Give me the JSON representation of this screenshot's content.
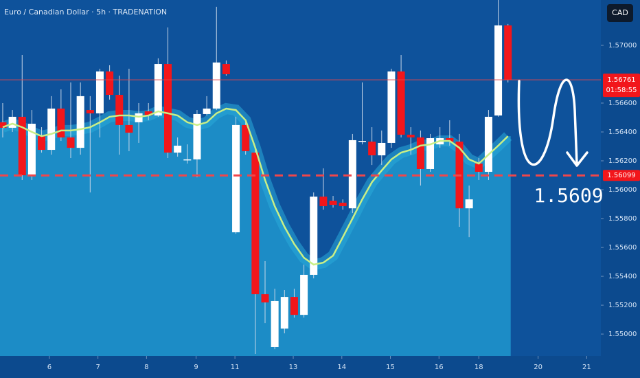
{
  "chart_data": {
    "type": "candlestick",
    "title": "Euro / Canadian Dollar · 5h · TRADENATION",
    "currency": "CAD",
    "open": [
      1.56467,
      1.56429,
      1.56505,
      1.561,
      1.56371,
      1.56276,
      1.56562,
      1.56362,
      1.5629,
      1.56552,
      1.56529,
      1.56819,
      1.56657,
      1.56448,
      1.56467,
      1.56543,
      1.56514,
      1.56871,
      1.56257,
      1.56205,
      1.5621,
      1.56524,
      1.56562,
      1.56871,
      1.55705,
      1.56448,
      1.56257,
      1.55276,
      1.5491,
      1.55038,
      1.55257,
      1.55133,
      1.5541,
      1.55952,
      1.55924,
      1.5591,
      1.55871,
      1.56333,
      1.56333,
      1.56238,
      1.56324,
      1.56819,
      1.56381,
      1.56362,
      1.56143,
      1.56314,
      1.56357,
      1.56333,
      1.55871,
      1.56181,
      1.56124,
      1.56514,
      1.57138
    ],
    "high": [
      1.566,
      1.56552,
      1.56933,
      1.56552,
      1.56433,
      1.56648,
      1.56695,
      1.56743,
      1.56743,
      1.56648,
      1.56838,
      1.56862,
      1.5679,
      1.56838,
      1.566,
      1.566,
      1.5691,
      1.57124,
      1.56362,
      1.56314,
      1.56552,
      1.56648,
      1.57267,
      1.56895,
      1.56505,
      1.56481,
      1.5629,
      1.55505,
      1.55314,
      1.55305,
      1.55314,
      1.55481,
      1.55981,
      1.56148,
      1.55957,
      1.55933,
      1.56386,
      1.56743,
      1.56433,
      1.5641,
      1.56838,
      1.56933,
      1.56433,
      1.5641,
      1.56386,
      1.56433,
      1.56481,
      1.56386,
      1.56029,
      1.56219,
      1.56552,
      1.57314,
      1.57148
    ],
    "low": [
      1.56362,
      1.564,
      1.56067,
      1.56067,
      1.56257,
      1.56243,
      1.56338,
      1.56219,
      1.56243,
      1.55981,
      1.56362,
      1.56624,
      1.56243,
      1.56267,
      1.56324,
      1.56481,
      1.56505,
      1.56219,
      1.56229,
      1.56181,
      1.56086,
      1.56514,
      1.56552,
      1.5679,
      1.55695,
      1.56243,
      1.54862,
      1.55076,
      1.54895,
      1.55005,
      1.55114,
      1.55114,
      1.55386,
      1.55862,
      1.55876,
      1.55862,
      1.55838,
      1.56314,
      1.56171,
      1.56171,
      1.5629,
      1.56362,
      1.56243,
      1.56029,
      1.56124,
      1.5629,
      1.56305,
      1.55743,
      1.55671,
      1.56067,
      1.56067,
      1.56505,
      1.56743
    ],
    "close": [
      1.56429,
      1.56505,
      1.561,
      1.56457,
      1.56276,
      1.56562,
      1.56362,
      1.5629,
      1.56648,
      1.56529,
      1.56819,
      1.56657,
      1.56448,
      1.56395,
      1.56529,
      1.56514,
      1.56871,
      1.56257,
      1.56305,
      1.5621,
      1.56524,
      1.56562,
      1.56881,
      1.568,
      1.56448,
      1.56267,
      1.55276,
      1.55219,
      1.55229,
      1.55257,
      1.55133,
      1.5541,
      1.55952,
      1.55886,
      1.55895,
      1.55886,
      1.56343,
      1.56338,
      1.56238,
      1.56324,
      1.56819,
      1.56381,
      1.56362,
      1.56143,
      1.56357,
      1.56357,
      1.56333,
      1.55871,
      1.55933,
      1.56124,
      1.56505,
      1.57138,
      1.56761
    ],
    "ma": [
      1.56433,
      1.56457,
      1.56433,
      1.564,
      1.56371,
      1.56386,
      1.5641,
      1.5641,
      1.56419,
      1.56433,
      1.56467,
      1.56505,
      1.56514,
      1.56514,
      1.56505,
      1.56514,
      1.56543,
      1.56529,
      1.56514,
      1.56467,
      1.56448,
      1.56467,
      1.56529,
      1.56562,
      1.56552,
      1.56481,
      1.5629,
      1.56067,
      1.55886,
      1.55743,
      1.55624,
      1.55529,
      1.55481,
      1.55495,
      1.55543,
      1.55671,
      1.558,
      1.55933,
      1.56052,
      1.56133,
      1.5621,
      1.56257,
      1.56276,
      1.56305,
      1.56314,
      1.56338,
      1.56338,
      1.5629,
      1.5621,
      1.56181,
      1.56243,
      1.56305,
      1.56371
    ],
    "up_color": "#ffffff",
    "down_color": "#f2161b",
    "ma_color": "#c9ef86",
    "area_color": "#1c8cc6",
    "ylim": [
      1.54848,
      1.57314
    ],
    "yticks": [
      {
        "value": 1.57,
        "label": "1.57000"
      },
      {
        "value": 1.566,
        "label": "1.56600"
      },
      {
        "value": 1.564,
        "label": "1.56400"
      },
      {
        "value": 1.562,
        "label": "1.56200"
      },
      {
        "value": 1.56,
        "label": "1.56000"
      },
      {
        "value": 1.558,
        "label": "1.55800"
      },
      {
        "value": 1.556,
        "label": "1.55600"
      },
      {
        "value": 1.554,
        "label": "1.55400"
      },
      {
        "value": 1.552,
        "label": "1.55200"
      },
      {
        "value": 1.55,
        "label": "1.55000"
      }
    ],
    "xlim": [
      -0.28,
      61.56
    ],
    "xticks": [
      {
        "value": 4.8,
        "label": "6"
      },
      {
        "value": 9.8,
        "label": "7"
      },
      {
        "value": 14.8,
        "label": "8"
      },
      {
        "value": 19.9,
        "label": "9"
      },
      {
        "value": 23.9,
        "label": "11"
      },
      {
        "value": 29.9,
        "label": "13"
      },
      {
        "value": 34.9,
        "label": "14"
      },
      {
        "value": 39.9,
        "label": "15"
      },
      {
        "value": 44.9,
        "label": "16"
      },
      {
        "value": 49.0,
        "label": "18"
      },
      {
        "value": 55.1,
        "label": "20"
      },
      {
        "value": 60.1,
        "label": "21"
      }
    ],
    "last_price": 1.56761,
    "countdown": "01:58:55",
    "level": 1.56099,
    "target": 1.5609
  }
}
